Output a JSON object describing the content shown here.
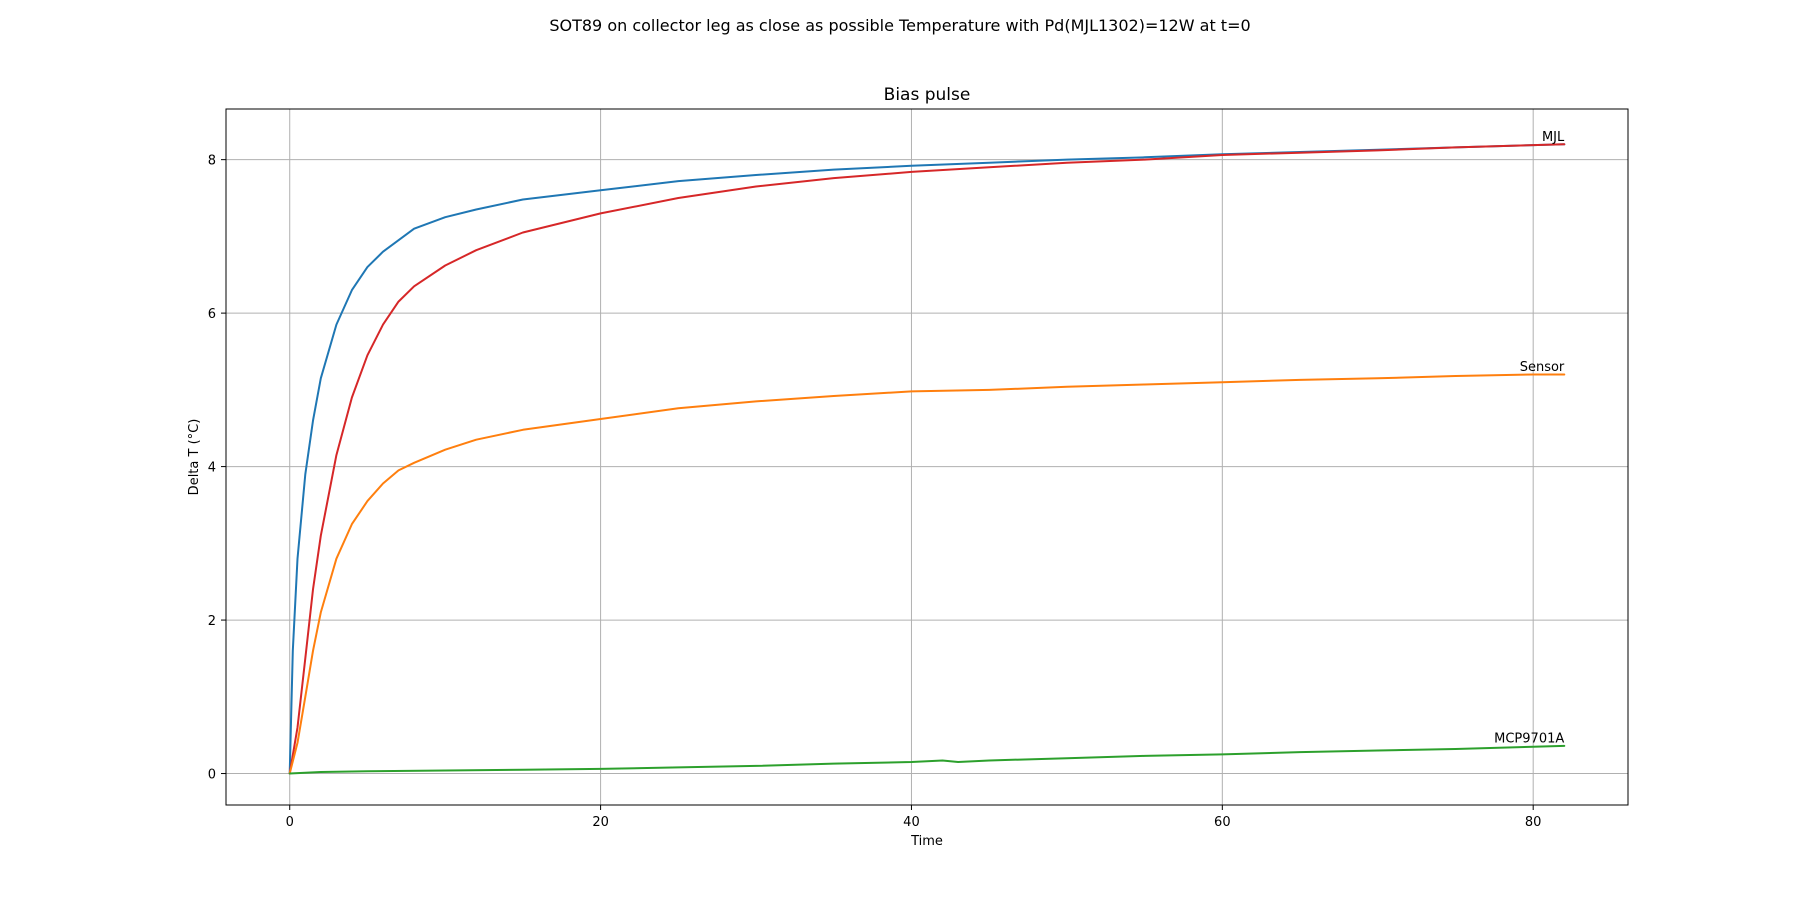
{
  "chart_data": {
    "type": "line",
    "suptitle": "SOT89 on collector leg as close as possible Temperature with Pd(MJL1302)=12W at t=0",
    "title": "Bias pulse",
    "xlabel": "Time",
    "ylabel": "Delta T (°C)",
    "xlim": [
      -4.1,
      86.1
    ],
    "ylim": [
      -0.41,
      8.66
    ],
    "xticks": [
      0,
      20,
      40,
      60,
      80
    ],
    "yticks": [
      0,
      2,
      4,
      6,
      8
    ],
    "grid": true,
    "series": [
      {
        "color": "#1f77b4",
        "x": [
          0,
          0.2,
          0.5,
          1,
          1.5,
          2,
          3,
          4,
          5,
          6,
          8,
          10,
          12,
          15,
          20,
          25,
          30,
          35,
          40,
          45,
          50,
          55,
          60,
          65,
          70,
          75,
          80,
          82
        ],
        "y": [
          0,
          1.6,
          2.8,
          3.9,
          4.6,
          5.15,
          5.85,
          6.3,
          6.6,
          6.8,
          7.1,
          7.25,
          7.35,
          7.48,
          7.6,
          7.72,
          7.8,
          7.87,
          7.92,
          7.96,
          8.0,
          8.03,
          8.07,
          8.1,
          8.13,
          8.16,
          8.19,
          8.2
        ]
      },
      {
        "color": "#d62728",
        "x": [
          0,
          0.5,
          1,
          1.5,
          2,
          3,
          4,
          5,
          6,
          7,
          8,
          10,
          12,
          15,
          20,
          25,
          30,
          35,
          40,
          45,
          50,
          55,
          60,
          65,
          70,
          75,
          80,
          82
        ],
        "y": [
          0,
          0.6,
          1.5,
          2.4,
          3.1,
          4.15,
          4.9,
          5.45,
          5.85,
          6.15,
          6.35,
          6.62,
          6.82,
          7.05,
          7.3,
          7.5,
          7.65,
          7.76,
          7.84,
          7.9,
          7.96,
          8.0,
          8.06,
          8.09,
          8.12,
          8.16,
          8.19,
          8.2
        ]
      },
      {
        "color": "#ff7f0e",
        "x": [
          0,
          0.5,
          1,
          1.5,
          2,
          3,
          4,
          5,
          6,
          7,
          8,
          10,
          12,
          15,
          20,
          25,
          30,
          35,
          40,
          45,
          50,
          55,
          60,
          65,
          70,
          75,
          80,
          82
        ],
        "y": [
          0,
          0.4,
          1.0,
          1.6,
          2.1,
          2.8,
          3.25,
          3.55,
          3.78,
          3.95,
          4.05,
          4.22,
          4.35,
          4.48,
          4.62,
          4.76,
          4.85,
          4.92,
          4.98,
          5.0,
          5.04,
          5.07,
          5.1,
          5.13,
          5.15,
          5.18,
          5.2,
          5.2
        ]
      },
      {
        "color": "#2ca02c",
        "x": [
          0,
          2,
          5,
          10,
          15,
          20,
          25,
          30,
          35,
          40,
          42,
          43,
          45,
          50,
          55,
          60,
          65,
          70,
          75,
          80,
          82
        ],
        "y": [
          0,
          0.02,
          0.03,
          0.04,
          0.05,
          0.06,
          0.08,
          0.1,
          0.13,
          0.15,
          0.17,
          0.15,
          0.17,
          0.2,
          0.23,
          0.25,
          0.28,
          0.3,
          0.32,
          0.35,
          0.36
        ]
      }
    ],
    "annotations": [
      {
        "text": "MJL",
        "x": 82,
        "y": 8.22
      },
      {
        "text": "Sensor",
        "x": 82,
        "y": 5.22
      },
      {
        "text": "MCP9701A",
        "x": 82,
        "y": 0.38
      }
    ]
  }
}
